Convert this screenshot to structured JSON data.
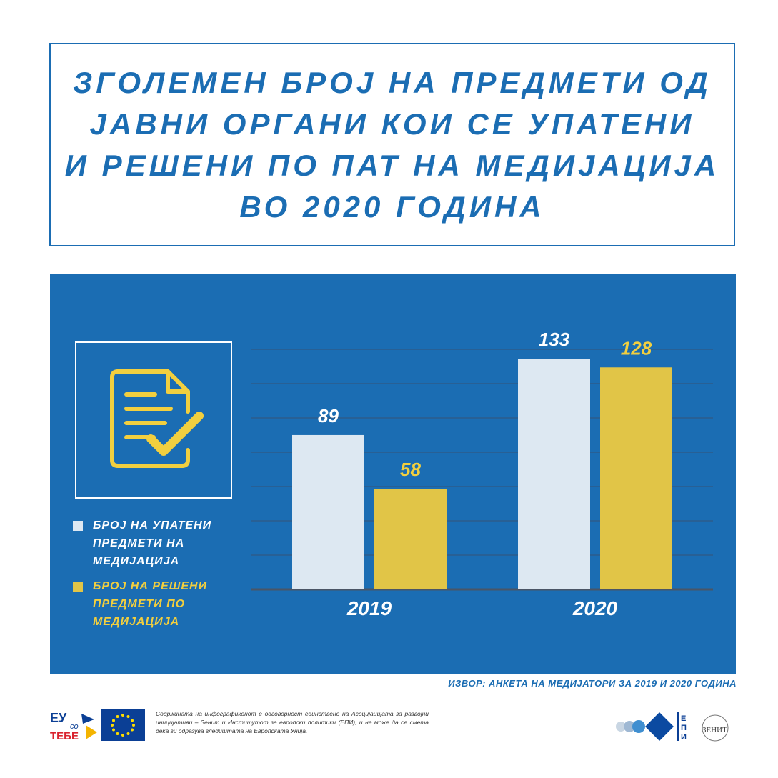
{
  "title": {
    "lines": [
      "ЗГОЛЕМЕН БРОЈ НА ПРЕДМЕТИ ОД",
      "ЈАВНИ ОРГАНИ КОИ СЕ УПАТЕНИ",
      "И РЕШЕНИ ПО ПАТ НА МЕДИЈАЦИЈА",
      "ВО 2020 ГОДИНА"
    ]
  },
  "icon": {
    "name": "document-check-icon"
  },
  "legend": [
    {
      "label": "БРОЈ НА УПАТЕНИ ПРЕДМЕТИ НА МЕДИЈАЦИЈА",
      "color": "#dde8f2"
    },
    {
      "label": "БРОЈ НА РЕШЕНИ ПРЕДМЕТИ ПО МЕДИЈАЦИЈА",
      "color": "#e1c547"
    }
  ],
  "chart_data": {
    "type": "bar",
    "categories": [
      "2019",
      "2020"
    ],
    "series": [
      {
        "name": "БРОЈ НА УПАТЕНИ ПРЕДМЕТИ НА МЕДИЈАЦИЈА",
        "values": [
          89,
          133
        ],
        "color": "#dde8f2",
        "label_color": "#ffffff"
      },
      {
        "name": "БРОЈ НА РЕШЕНИ ПРЕДМЕТИ ПО МЕДИЈАЦИЈА",
        "values": [
          58,
          128
        ],
        "color": "#e1c547",
        "label_color": "#f2cf3f"
      }
    ],
    "ylim": [
      0,
      145
    ],
    "grid": true,
    "legend_position": "left"
  },
  "source": "ИЗВОР: АНКЕТА НА МЕДИЈАТОРИ ЗА 2019 И 2020 ГОДИНА",
  "footer": {
    "eu_logo": {
      "line1": "ЕУ",
      "line2": "со",
      "line3": "ТЕБЕ"
    },
    "disclaimer": "Содржината на инфографиконот е одговорност единствено на Асоцијацијата за развојни иницијативи – Зенит и Институтот за европски политики (ЕПИ), и не може да се смета дека ги одразува гледиштата на Европската Унија.",
    "epi_letters": [
      "Е",
      "П",
      "И"
    ],
    "zenit_label": "ЗЕНИТ"
  },
  "colors": {
    "brand_blue": "#1b6db3",
    "bar_light": "#dde8f2",
    "bar_yellow": "#e1c547",
    "accent_yellow": "#f2cf3f"
  }
}
